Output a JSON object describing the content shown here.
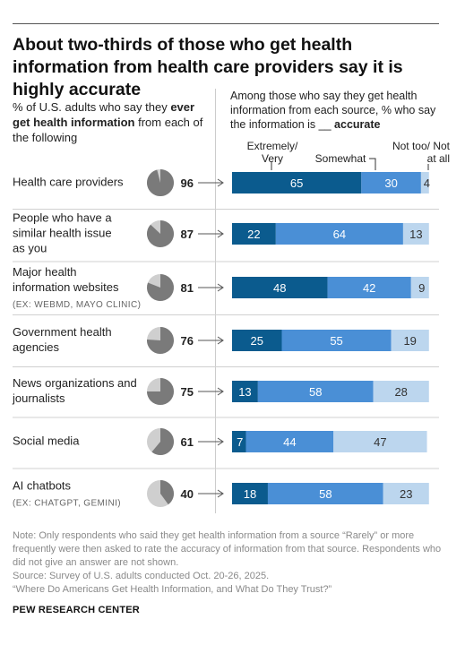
{
  "title": "About two-thirds of those who get health information from health care providers say it is highly accurate",
  "left_header": {
    "pre": "% of U.S. adults who say they ",
    "bold": "ever get health information",
    "post": " from each of the following"
  },
  "right_header": {
    "pre": "Among those who say they get health information from each source, % who say the information is __ ",
    "bold": "accurate"
  },
  "categories_header": {
    "extremely": "Extremely/ Very",
    "somewhat": "Somewhat",
    "nottoo": "Not too/ Not at all"
  },
  "colors": {
    "extremely": "#0b5b8e",
    "somewhat": "#4a8fd6",
    "nottoo": "#bcd6ee",
    "pie_fill": "#7a7a7a",
    "pie_empty": "#cfcfcf"
  },
  "chart_data": {
    "type": "bar",
    "rows": [
      {
        "label": "Health care providers",
        "sublabel": "",
        "ever": 96,
        "extremely": 65,
        "somewhat": 30,
        "nottoo": 4
      },
      {
        "label": "People who have a similar health issue as you",
        "sublabel": "",
        "ever": 87,
        "extremely": 22,
        "somewhat": 64,
        "nottoo": 13
      },
      {
        "label": "Major health information websites",
        "sublabel": "(EX: WEBMD, MAYO CLINIC)",
        "ever": 81,
        "extremely": 48,
        "somewhat": 42,
        "nottoo": 9
      },
      {
        "label": "Government health agencies",
        "sublabel": "",
        "ever": 76,
        "extremely": 25,
        "somewhat": 55,
        "nottoo": 19
      },
      {
        "label": "News organizations and journalists",
        "sublabel": "",
        "ever": 75,
        "extremely": 13,
        "somewhat": 58,
        "nottoo": 28
      },
      {
        "label": "Social media",
        "sublabel": "",
        "ever": 61,
        "extremely": 7,
        "somewhat": 44,
        "nottoo": 47
      },
      {
        "label": "AI chatbots",
        "sublabel": "(EX: CHATGPT, GEMINI)",
        "ever": 40,
        "extremely": 18,
        "somewhat": 58,
        "nottoo": 23
      }
    ]
  },
  "note": "Note: Only respondents who said they get health information from a source “Rarely” or more frequently were then asked to rate the accuracy of information from that source. Respondents who did not give an answer are not shown.",
  "source": "Source: Survey of U.S. adults conducted Oct. 20-26, 2025.",
  "report": "“Where Do Americans Get Health Information, and What Do They Trust?”",
  "brand": "PEW RESEARCH CENTER"
}
